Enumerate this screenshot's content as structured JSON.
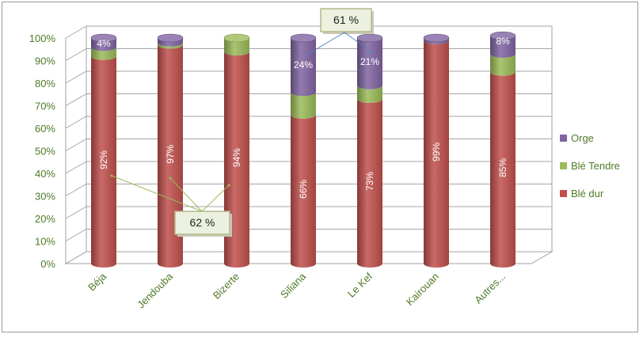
{
  "chart_data": {
    "type": "bar",
    "stacked": true,
    "percent": true,
    "categories": [
      "Béja",
      "Jendouba",
      "Bizerte",
      "Siliana",
      "Le Kef",
      "Kairouan",
      "Autres..."
    ],
    "series": [
      {
        "name": "Blé dur",
        "color": "#c0504d",
        "values": [
          92,
          97,
          94,
          66,
          73,
          99,
          85
        ]
      },
      {
        "name": "Blé Tendre",
        "color": "#9bbb59",
        "values": [
          4,
          1,
          6,
          10,
          6,
          0,
          8
        ]
      },
      {
        "name": "Orge",
        "color": "#8064a2",
        "values": [
          4,
          2,
          0,
          24,
          21,
          1,
          8
        ]
      }
    ],
    "data_labels": [
      {
        "series": "Blé dur",
        "values": [
          "92%",
          "97%",
          "94%",
          "66%",
          "73%",
          "99%",
          "85%"
        ]
      },
      {
        "series": "Orge",
        "values": [
          "4%",
          "",
          "",
          "24%",
          "21%",
          "",
          "8%"
        ]
      }
    ],
    "y_ticks": [
      "0%",
      "10%",
      "20%",
      "30%",
      "40%",
      "50%",
      "60%",
      "70%",
      "80%",
      "90%",
      "100%"
    ],
    "ylim": [
      0,
      100
    ],
    "grid": true,
    "legend_position": "right",
    "annotations": [
      {
        "text": "62 %",
        "points_to": [
          "Béja",
          "Jendouba",
          "Bizerte"
        ]
      },
      {
        "text": "61 %",
        "points_to": [
          "Siliana",
          "Le Kef"
        ]
      }
    ]
  }
}
